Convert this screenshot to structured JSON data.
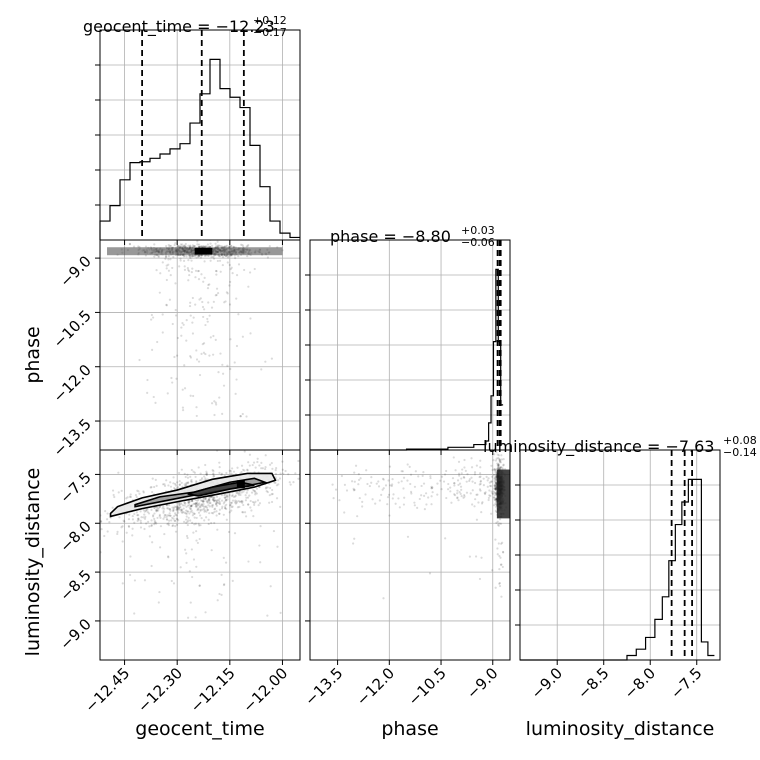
{
  "chart_data": {
    "type": "corner",
    "parameters": [
      "geocent_time",
      "phase",
      "luminosity_distance"
    ],
    "titles": {
      "geocent_time": {
        "name": "geocent_time",
        "median": "−12.23",
        "plus": "+0.12",
        "minus": "−0.17"
      },
      "phase": {
        "name": "phase",
        "median": "−8.80",
        "plus": "+0.03",
        "minus": "−0.06"
      },
      "luminosity_distance": {
        "name": "luminosity_distance",
        "median": "−7.63",
        "plus": "+0.08",
        "minus": "−0.14"
      }
    },
    "ranges": {
      "geocent_time": [
        -12.52,
        -11.95
      ],
      "phase": [
        -14.3,
        -8.5
      ],
      "luminosity_distance": [
        -9.4,
        -7.25
      ]
    },
    "ticks": {
      "geocent_time": [
        "−12.45",
        "−12.30",
        "−12.15",
        "−12.00"
      ],
      "phase": [
        "−13.5",
        "−12.0",
        "−10.5",
        "−9.0"
      ],
      "luminosity_distance": [
        "−9.0",
        "−8.5",
        "−8.0",
        "−7.5"
      ]
    },
    "tick_values": {
      "geocent_time": [
        -12.45,
        -12.3,
        -12.15,
        -12.0
      ],
      "phase": [
        -13.5,
        -12.0,
        -10.5,
        -9.0
      ],
      "luminosity_distance": [
        -9.0,
        -8.5,
        -8.0,
        -7.5
      ]
    },
    "histograms": {
      "geocent_time": {
        "edges": [
          -12.52,
          -12.4915,
          -12.463,
          -12.4345,
          -12.406,
          -12.3775,
          -12.349,
          -12.3205,
          -12.292,
          -12.2635,
          -12.235,
          -12.2065,
          -12.178,
          -12.1495,
          -12.121,
          -12.0925,
          -12.064,
          -12.0355,
          -12.007,
          -11.9785,
          -11.95
        ],
        "counts": [
          0.22,
          0.4,
          0.7,
          0.9,
          0.91,
          0.95,
          1.0,
          1.06,
          1.12,
          1.36,
          1.7,
          2.1,
          1.76,
          1.66,
          1.54,
          1.1,
          0.62,
          0.22,
          0.08,
          0.03
        ]
      },
      "phase": {
        "edges": [
          -14.3,
          -11.5,
          -10.3,
          -9.55,
          -9.2,
          -9.12,
          -9.05,
          -8.98,
          -8.91,
          -8.84,
          -8.77,
          -8.7
        ],
        "counts": [
          0.0,
          0.01,
          0.03,
          0.06,
          0.1,
          0.3,
          0.6,
          1.2,
          2.0,
          1.2,
          0.5
        ]
      },
      "luminosity_distance": {
        "edges": [
          -9.4,
          -8.25,
          -8.15,
          -8.05,
          -7.95,
          -7.87,
          -7.8,
          -7.73,
          -7.66,
          -7.59,
          -7.52,
          -7.45,
          -7.38,
          -7.31
        ],
        "counts": [
          0.0,
          0.05,
          0.12,
          0.25,
          0.45,
          0.7,
          1.1,
          1.5,
          1.75,
          2.0,
          2.0,
          0.2,
          0.05
        ]
      }
    },
    "quantiles": {
      "geocent_time": [
        -12.4,
        -12.23,
        -12.11
      ],
      "phase": [
        -8.86,
        -8.8,
        -8.77
      ],
      "luminosity_distance": [
        -7.77,
        -7.63,
        -7.55
      ]
    },
    "contours": {
      "geocent_time|phase": [],
      "geocent_time|luminosity_distance": [
        [
          [
            -12.49,
            -7.9
          ],
          [
            -12.47,
            -7.83
          ],
          [
            -12.4,
            -7.74
          ],
          [
            -12.3,
            -7.66
          ],
          [
            -12.2,
            -7.55
          ],
          [
            -12.1,
            -7.49
          ],
          [
            -12.03,
            -7.49
          ],
          [
            -12.02,
            -7.56
          ],
          [
            -12.08,
            -7.63
          ],
          [
            -12.18,
            -7.7
          ],
          [
            -12.3,
            -7.78
          ],
          [
            -12.4,
            -7.85
          ],
          [
            -12.49,
            -7.93
          ]
        ],
        [
          [
            -12.42,
            -7.81
          ],
          [
            -12.35,
            -7.73
          ],
          [
            -12.25,
            -7.68
          ],
          [
            -12.15,
            -7.58
          ],
          [
            -12.08,
            -7.54
          ],
          [
            -12.05,
            -7.58
          ],
          [
            -12.12,
            -7.63
          ],
          [
            -12.22,
            -7.69
          ],
          [
            -12.32,
            -7.76
          ],
          [
            -12.42,
            -7.83
          ]
        ],
        [
          [
            -12.27,
            -7.7
          ],
          [
            -12.2,
            -7.63
          ],
          [
            -12.12,
            -7.58
          ],
          [
            -12.08,
            -7.61
          ],
          [
            -12.15,
            -7.65
          ],
          [
            -12.24,
            -7.72
          ]
        ]
      ],
      "phase|luminosity_distance": []
    },
    "grid": true
  }
}
